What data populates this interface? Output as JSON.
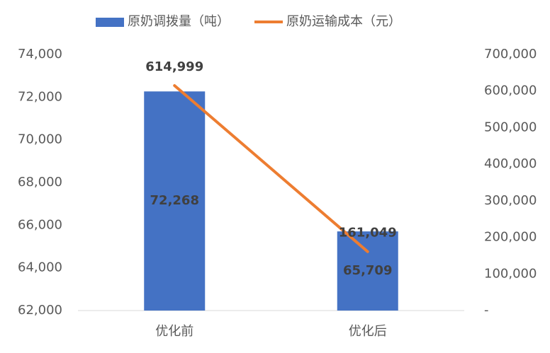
{
  "chart_data": {
    "type": "combo",
    "categories": [
      "优化前",
      "优化后"
    ],
    "series": [
      {
        "name": "原奶调拨量（吨）",
        "type": "bar",
        "color": "#4472c4",
        "values": [
          72268,
          65709
        ],
        "value_labels": [
          "72,268",
          "65,709"
        ]
      },
      {
        "name": "原奶运输成本（元）",
        "type": "line",
        "axis": "y2",
        "color": "#ed7d31",
        "values": [
          614999,
          161049
        ],
        "value_labels": [
          "614,999",
          "161,049"
        ]
      }
    ],
    "ylim": [
      62000,
      74000
    ],
    "yticks": [
      {
        "value": 62000,
        "label": "62,000"
      },
      {
        "value": 64000,
        "label": "64,000"
      },
      {
        "value": 66000,
        "label": "66,000"
      },
      {
        "value": 68000,
        "label": "68,000"
      },
      {
        "value": 70000,
        "label": "70,000"
      },
      {
        "value": 72000,
        "label": "72,000"
      },
      {
        "value": 74000,
        "label": "74,000"
      }
    ],
    "y2lim": [
      0,
      700000
    ],
    "y2ticks": [
      {
        "value": 0,
        "label": "-"
      },
      {
        "value": 100000,
        "label": "100,000"
      },
      {
        "value": 200000,
        "label": "200,000"
      },
      {
        "value": 300000,
        "label": "300,000"
      },
      {
        "value": 400000,
        "label": "400,000"
      },
      {
        "value": 500000,
        "label": "500,000"
      },
      {
        "value": 600000,
        "label": "600,000"
      },
      {
        "value": 700000,
        "label": "700,000"
      }
    ],
    "legend": "top"
  }
}
